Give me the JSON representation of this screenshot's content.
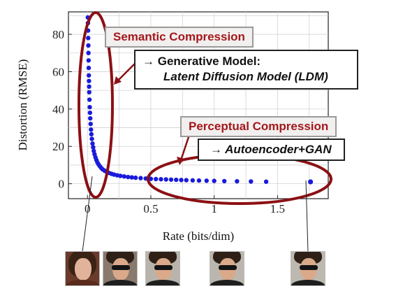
{
  "chart_data": {
    "type": "scatter",
    "xlabel": "Rate (bits/dim)",
    "ylabel": "Distortion (RMSE)",
    "xlim": [
      -0.15,
      1.9
    ],
    "ylim": [
      -8,
      92
    ],
    "x_ticks": [
      0,
      0.5,
      1,
      1.5
    ],
    "x_tick_labels": [
      "0",
      "0.5",
      "1",
      "1.5"
    ],
    "y_ticks": [
      0,
      20,
      40,
      60,
      80
    ],
    "y_tick_labels": [
      "0",
      "20",
      "40",
      "60",
      "80"
    ],
    "grid": true,
    "series": [
      {
        "color": "#1a1adc",
        "x": [
          0.003,
          0.004,
          0.005,
          0.006,
          0.007,
          0.008,
          0.009,
          0.01,
          0.011,
          0.012,
          0.013,
          0.014,
          0.016,
          0.018,
          0.02,
          0.022,
          0.025,
          0.028,
          0.031,
          0.035,
          0.04,
          0.045,
          0.05,
          0.056,
          0.063,
          0.07,
          0.078,
          0.087,
          0.097,
          0.108,
          0.12,
          0.135,
          0.15,
          0.17,
          0.19,
          0.21,
          0.235,
          0.26,
          0.29,
          0.32,
          0.35,
          0.38,
          0.42,
          0.46,
          0.5,
          0.54,
          0.58,
          0.62,
          0.66,
          0.7,
          0.74,
          0.78,
          0.83,
          0.88,
          0.94,
          1.0,
          1.08,
          1.18,
          1.29,
          1.41,
          1.76
        ],
        "y": [
          89,
          86,
          82,
          78,
          74,
          70,
          66,
          62,
          58,
          55,
          52,
          49,
          45,
          41,
          38,
          35,
          32,
          29,
          26.5,
          24,
          21.5,
          19.5,
          17.5,
          15.8,
          14.2,
          12.8,
          11.5,
          10.4,
          9.4,
          8.5,
          7.7,
          7.0,
          6.4,
          5.8,
          5.3,
          4.9,
          4.5,
          4.2,
          3.9,
          3.6,
          3.4,
          3.2,
          3.0,
          2.8,
          2.6,
          2.5,
          2.4,
          2.3,
          2.2,
          2.1,
          2.0,
          1.9,
          1.8,
          1.7,
          1.6,
          1.5,
          1.4,
          1.3,
          1.2,
          1.1,
          1.0
        ]
      }
    ]
  },
  "annotations": {
    "semantic_title": "Semantic Compression",
    "semantic_model_prefix": "→ Generative Model:",
    "semantic_model_name": "Latent Diffusion Model (LDM)",
    "perceptual_title": "Perceptual Compression",
    "perceptual_model": "→ Autoencoder+GAN"
  },
  "colors": {
    "ellipse": "#8b1014",
    "annotation_text": "#a3181b",
    "points": "#1a1adc"
  }
}
